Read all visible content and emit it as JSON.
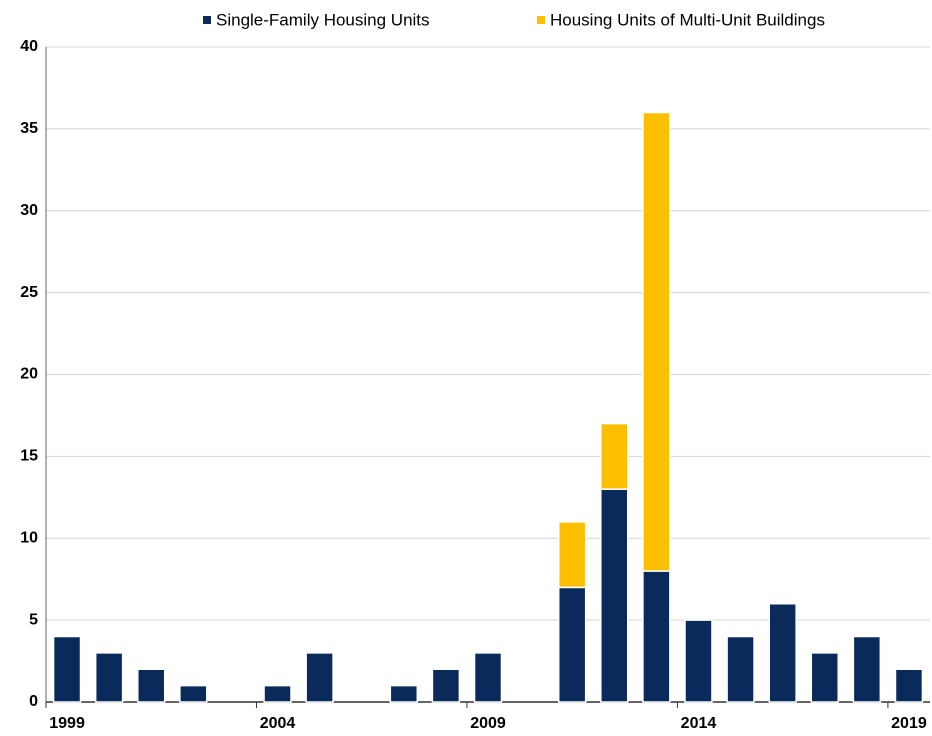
{
  "chart_data": {
    "type": "stacked_bar",
    "categories": [
      "1999",
      null,
      null,
      null,
      null,
      "2004",
      null,
      null,
      null,
      null,
      "2009",
      null,
      null,
      null,
      null,
      "2014",
      null,
      null,
      null,
      null,
      "2019"
    ],
    "series": [
      {
        "name": "Single-Family Housing Units",
        "color": "#0b2a5c",
        "values": [
          4,
          3,
          2,
          1,
          0,
          1,
          3,
          0,
          1,
          2,
          3,
          0,
          7,
          13,
          8,
          5,
          4,
          6,
          3,
          4,
          2
        ]
      },
      {
        "name": "Housing Units of Multi-Unit Buildings",
        "color": "#fbbf00",
        "values": [
          0,
          0,
          0,
          0,
          0,
          0,
          0,
          0,
          0,
          0,
          0,
          0,
          4,
          4,
          28,
          0,
          0,
          0,
          0,
          0,
          0
        ]
      }
    ],
    "ylim": [
      0,
      40
    ],
    "yticks": [
      0,
      5,
      10,
      15,
      20,
      25,
      30,
      35,
      40
    ],
    "grid": true
  }
}
